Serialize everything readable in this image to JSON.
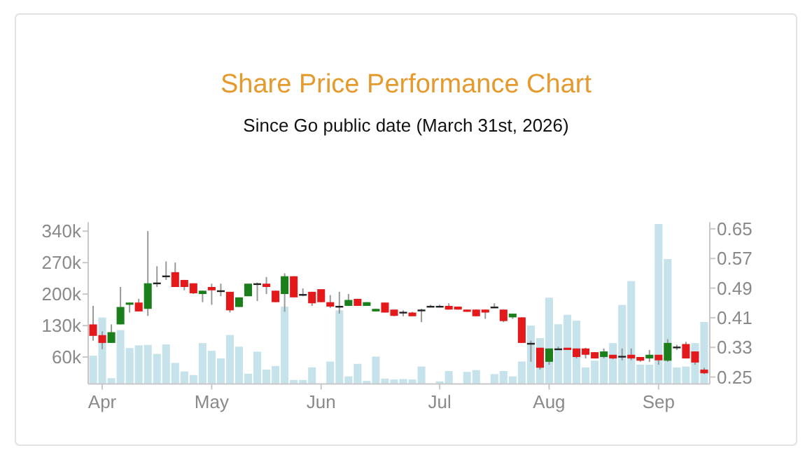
{
  "chart_data": {
    "type": "candlestick",
    "title": "Share Price Performance Chart",
    "subtitle": "Since Go public date (March 31st, 2026)",
    "categories": [
      null,
      "Apr",
      null,
      null,
      null,
      null,
      null,
      null,
      null,
      null,
      null,
      null,
      null,
      "May",
      null,
      null,
      null,
      null,
      null,
      null,
      null,
      null,
      null,
      null,
      null,
      "Jun",
      null,
      null,
      null,
      null,
      null,
      null,
      null,
      null,
      null,
      null,
      null,
      null,
      "Jul",
      null,
      null,
      null,
      null,
      null,
      null,
      null,
      null,
      null,
      null,
      null,
      "Aug",
      null,
      null,
      null,
      null,
      null,
      null,
      null,
      null,
      null,
      null,
      null,
      "Sep",
      null,
      null,
      null,
      null,
      null
    ],
    "ylim": [
      0,
      360000
    ],
    "yticks": [
      {
        "value": 60000,
        "label": "60k"
      },
      {
        "value": 130000,
        "label": "130k"
      },
      {
        "value": 200000,
        "label": "200k"
      },
      {
        "value": 270000,
        "label": "270k"
      },
      {
        "value": 340000,
        "label": "340k"
      }
    ],
    "y2lim": [
      0.231,
      0.668
    ],
    "y2ticks": [
      0.25,
      0.33,
      0.41,
      0.49,
      0.57,
      0.65
    ],
    "grid": false,
    "series": [
      {
        "type": "bar",
        "axis": "y",
        "color": "#c6e3ec",
        "values": [
          63000,
          148000,
          13000,
          120000,
          80000,
          86000,
          87000,
          67000,
          88000,
          47000,
          28000,
          20000,
          91000,
          74000,
          57000,
          109000,
          83000,
          23000,
          72000,
          32000,
          40000,
          172000,
          9000,
          9000,
          37000,
          null,
          50000,
          164000,
          17000,
          45000,
          7000,
          61000,
          12000,
          10000,
          11000,
          10000,
          39000,
          1000,
          6000,
          29000,
          null,
          27000,
          31000,
          null,
          22000,
          29000,
          17000,
          50000,
          130000,
          102000,
          192000,
          133000,
          154000,
          141000,
          37000,
          52000,
          67000,
          91000,
          176000,
          229000,
          43000,
          43000,
          356000,
          278000,
          37000,
          39000,
          91000,
          138000
        ]
      },
      {
        "axis": "y2",
        "ohlc": [
          [
            0.392,
            0.442,
            0.348,
            0.361
          ],
          [
            0.363,
            0.373,
            0.325,
            0.342
          ],
          [
            0.342,
            0.392,
            0.342,
            0.371
          ],
          [
            0.392,
            0.493,
            0.392,
            0.439
          ],
          [
            0.445,
            0.451,
            0.424,
            0.451
          ],
          [
            0.451,
            0.461,
            0.427,
            0.427
          ],
          [
            0.434,
            0.644,
            0.415,
            0.503
          ],
          [
            0.505,
            0.549,
            0.493,
            0.505
          ],
          [
            0.524,
            0.562,
            0.512,
            0.524
          ],
          [
            0.533,
            0.559,
            0.493,
            0.493
          ],
          [
            0.512,
            0.512,
            0.484,
            0.493
          ],
          [
            0.503,
            0.503,
            0.474,
            0.476
          ],
          [
            0.474,
            0.483,
            0.452,
            0.483
          ],
          [
            0.493,
            0.502,
            0.445,
            0.484
          ],
          [
            0.484,
            0.502,
            0.468,
            0.484
          ],
          [
            0.48,
            0.48,
            0.424,
            0.43
          ],
          [
            0.439,
            0.465,
            0.439,
            0.465
          ],
          [
            0.468,
            0.502,
            0.468,
            0.502
          ],
          [
            0.503,
            0.505,
            0.455,
            0.503
          ],
          [
            0.502,
            0.52,
            0.474,
            0.493
          ],
          [
            0.483,
            0.483,
            0.452,
            0.452
          ],
          [
            0.474,
            0.53,
            0.426,
            0.522
          ],
          [
            0.522,
            0.522,
            0.465,
            0.465
          ],
          [
            0.474,
            0.489,
            0.468,
            0.474
          ],
          [
            0.48,
            0.48,
            0.442,
            0.449
          ],
          [
            0.487,
            0.487,
            0.452,
            0.452
          ],
          [
            0.452,
            0.471,
            0.436,
            0.44
          ],
          [
            0.442,
            0.48,
            0.421,
            0.442
          ],
          [
            0.442,
            0.474,
            0.442,
            0.458
          ],
          [
            0.461,
            0.461,
            0.442,
            0.442
          ],
          [
            0.442,
            0.452,
            0.442,
            0.452
          ],
          [
            0.427,
            0.434,
            0.427,
            0.434
          ],
          [
            0.451,
            0.451,
            0.424,
            0.424
          ],
          [
            0.432,
            0.432,
            0.414,
            0.415
          ],
          [
            0.426,
            0.43,
            0.414,
            0.426
          ],
          [
            0.424,
            0.426,
            0.414,
            0.414
          ],
          [
            0.432,
            0.434,
            0.398,
            0.432
          ],
          [
            0.442,
            0.445,
            0.44,
            0.442
          ],
          [
            0.442,
            0.445,
            0.438,
            0.442
          ],
          [
            0.442,
            0.449,
            0.432,
            0.432
          ],
          [
            0.44,
            0.44,
            0.432,
            0.432
          ],
          [
            0.432,
            0.432,
            0.426,
            0.426
          ],
          [
            0.432,
            0.432,
            0.414,
            0.414
          ],
          [
            0.432,
            0.432,
            0.407,
            0.424
          ],
          [
            0.44,
            0.449,
            0.436,
            0.44
          ],
          [
            0.432,
            0.432,
            0.398,
            0.401
          ],
          [
            0.411,
            0.421,
            0.407,
            0.421
          ],
          [
            0.411,
            0.411,
            0.342,
            0.342
          ],
          [
            0.342,
            0.348,
            0.291,
            0.342
          ],
          [
            0.329,
            0.329,
            0.27,
            0.275
          ],
          [
            0.291,
            0.327,
            0.283,
            0.327
          ],
          [
            0.327,
            0.332,
            0.323,
            0.327
          ],
          [
            0.329,
            0.329,
            0.323,
            0.323
          ],
          [
            0.327,
            0.327,
            0.3,
            0.304
          ],
          [
            0.327,
            0.329,
            0.3,
            0.31
          ],
          [
            0.317,
            0.317,
            0.3,
            0.3
          ],
          [
            0.304,
            0.327,
            0.3,
            0.319
          ],
          [
            0.31,
            0.31,
            0.298,
            0.3
          ],
          [
            0.307,
            0.327,
            0.295,
            0.307
          ],
          [
            0.31,
            0.327,
            0.295,
            0.3
          ],
          [
            0.304,
            0.304,
            0.291,
            0.294
          ],
          [
            0.3,
            0.323,
            0.291,
            0.31
          ],
          [
            0.31,
            0.31,
            0.283,
            0.295
          ],
          [
            0.294,
            0.352,
            0.291,
            0.342
          ],
          [
            0.332,
            0.337,
            0.323,
            0.332
          ],
          [
            0.339,
            0.345,
            0.3,
            0.3
          ],
          [
            0.319,
            0.319,
            0.283,
            0.289
          ],
          [
            0.27,
            0.275,
            0.258,
            0.26
          ]
        ],
        "colors": [
          "#e3191c",
          "#e3191c",
          "#1b7f1b",
          "#1b7f1b",
          "#1b7f1b",
          "#e3191c",
          "#1b7f1b",
          "#222222",
          "#222222",
          "#e3191c",
          "#e3191c",
          "#e3191c",
          "#1b7f1b",
          "#e3191c",
          "#222222",
          "#e3191c",
          "#1b7f1b",
          "#1b7f1b",
          "#222222",
          "#e3191c",
          "#e3191c",
          "#1b7f1b",
          "#e3191c",
          "#222222",
          "#e3191c",
          "#e3191c",
          "#e3191c",
          "#222222",
          "#1b7f1b",
          "#e3191c",
          "#1b7f1b",
          "#1b7f1b",
          "#e3191c",
          "#e3191c",
          "#222222",
          "#e3191c",
          "#222222",
          "#222222",
          "#222222",
          "#e3191c",
          "#e3191c",
          "#e3191c",
          "#e3191c",
          "#e3191c",
          "#222222",
          "#e3191c",
          "#1b7f1b",
          "#e3191c",
          "#222222",
          "#e3191c",
          "#1b7f1b",
          "#222222",
          "#e3191c",
          "#e3191c",
          "#e3191c",
          "#e3191c",
          "#1b7f1b",
          "#e3191c",
          "#222222",
          "#e3191c",
          "#e3191c",
          "#1b7f1b",
          "#e3191c",
          "#1b7f1b",
          "#222222",
          "#e3191c",
          "#e3191c",
          "#e3191c"
        ]
      }
    ]
  }
}
